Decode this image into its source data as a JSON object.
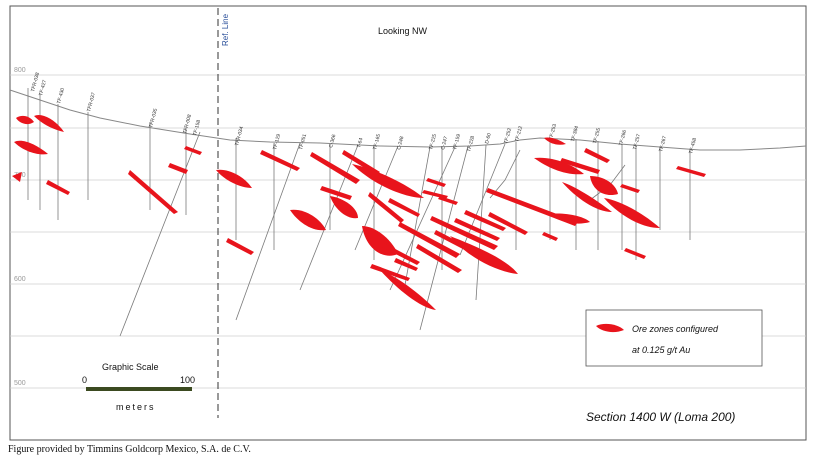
{
  "view_label": "Looking NW",
  "ref_line_label": "Ref. Line",
  "section_title": "Section 1400 W  (Loma 200)",
  "elevation_labels": [
    "800",
    "700",
    "600",
    "500"
  ],
  "drillholes": [
    "TFR-038",
    "TF-427",
    "TF-430",
    "TFR-037",
    "TFR-035",
    "TFR-008",
    "TF-158",
    "TFR-034",
    "TF-129",
    "TF-051",
    "C-366",
    "T-64",
    "TF-165",
    "C-248",
    "TF-225",
    "C-247",
    "TF-159",
    "TF-228",
    "D-60",
    "TF-252",
    "TF-212",
    "TF-253",
    "TF-384",
    "TF-255",
    "TF-266",
    "TF-257",
    "TF-267",
    "TF-458"
  ],
  "graphic_scale": {
    "title": "Graphic Scale",
    "start": "0",
    "end": "100",
    "unit": "meters"
  },
  "legend": {
    "line1": "Ore zones configured",
    "line2": "at 0.125 g/t Au",
    "swatch_color": "#e8141c"
  },
  "caption": "Figure provided by Timmins Goldcorp Mexico, S.A. de C.V.",
  "colors": {
    "ore": "#e8141c",
    "frame": "#555555",
    "grid": "#c8c8c8",
    "drill": "#777777",
    "scale_bar": "#3b4a20"
  }
}
